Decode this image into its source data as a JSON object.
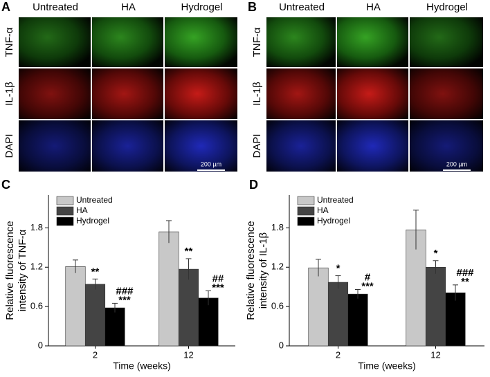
{
  "panels": [
    {
      "label": "A",
      "columns": [
        "Untreated",
        "HA",
        "Hydrogel"
      ],
      "rows": [
        "TNF-α",
        "IL-1β",
        "DAPI"
      ],
      "scale_bar": "200 µm"
    },
    {
      "label": "B",
      "columns": [
        "Untreated",
        "HA",
        "Hydrogel"
      ],
      "rows": [
        "TNF-α",
        "IL-1β",
        "DAPI"
      ],
      "scale_bar": "200 µm"
    }
  ],
  "chart_data": [
    {
      "type": "bar",
      "label": "C",
      "ylabel": [
        "Relative fluorescence",
        "intensity of TNF-α"
      ],
      "xlabel": "Time (weeks)",
      "categories": [
        "2",
        "12"
      ],
      "ylim": [
        0,
        2.3
      ],
      "yticks": [
        0,
        0.6,
        1.2,
        1.8
      ],
      "legend": "upper-left",
      "series": [
        {
          "name": "Untreated",
          "color": "#c8c8c8",
          "values": [
            1.21,
            1.74
          ],
          "errors": [
            0.1,
            0.17
          ]
        },
        {
          "name": "HA",
          "color": "#444444",
          "values": [
            0.94,
            1.17
          ],
          "errors": [
            0.08,
            0.16
          ],
          "significance": [
            [
              "**"
            ],
            [
              "**"
            ]
          ]
        },
        {
          "name": "Hydrogel",
          "color": "#000000",
          "values": [
            0.58,
            0.73
          ],
          "errors": [
            0.07,
            0.11
          ],
          "significance": [
            [
              "###",
              "***"
            ],
            [
              "##",
              "***"
            ]
          ]
        }
      ]
    },
    {
      "type": "bar",
      "label": "D",
      "ylabel": [
        "Relative fluorescence",
        "intensity of IL-1β"
      ],
      "xlabel": "Time (weeks)",
      "categories": [
        "2",
        "12"
      ],
      "ylim": [
        0,
        2.3
      ],
      "yticks": [
        0,
        0.6,
        1.2,
        1.8
      ],
      "legend": "upper-left",
      "series": [
        {
          "name": "Untreated",
          "color": "#c8c8c8",
          "values": [
            1.19,
            1.77
          ],
          "errors": [
            0.13,
            0.3
          ]
        },
        {
          "name": "HA",
          "color": "#444444",
          "values": [
            0.97,
            1.2
          ],
          "errors": [
            0.1,
            0.1
          ],
          "significance": [
            [
              "*"
            ],
            [
              "*"
            ]
          ]
        },
        {
          "name": "Hydrogel",
          "color": "#000000",
          "values": [
            0.79,
            0.81
          ],
          "errors": [
            0.07,
            0.12
          ],
          "significance": [
            [
              "#",
              "***"
            ],
            [
              "###",
              "**"
            ]
          ]
        }
      ]
    }
  ]
}
